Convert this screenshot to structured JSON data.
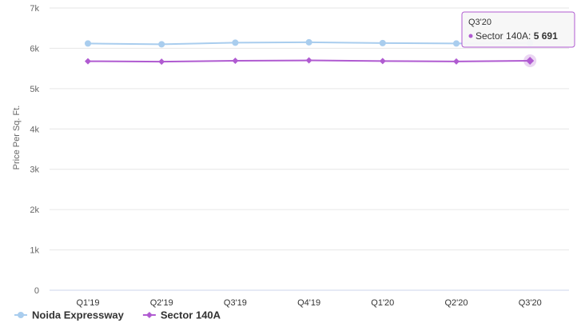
{
  "chart_data": {
    "type": "line",
    "categories": [
      "Q1'19",
      "Q2'19",
      "Q3'19",
      "Q4'19",
      "Q1'20",
      "Q2'20",
      "Q3'20"
    ],
    "ylabel": "Price Per Sq. Ft.",
    "ylim": [
      0,
      7000
    ],
    "yticks": [
      "0",
      "1k",
      "2k",
      "3k",
      "4k",
      "5k",
      "6k",
      "7k"
    ],
    "grid": true,
    "legend_position": "bottom-left",
    "series": [
      {
        "name": "Noida Expressway",
        "color": "#a9cdee",
        "marker": "circle",
        "values": [
          6120,
          6100,
          6140,
          6150,
          6130,
          6120,
          6130
        ]
      },
      {
        "name": "Sector 140A",
        "color": "#b05bd1",
        "marker": "diamond",
        "values": [
          5680,
          5670,
          5690,
          5700,
          5685,
          5675,
          5691
        ]
      }
    ],
    "tooltip": {
      "category": "Q3'20",
      "series": "Sector 140A",
      "label": "Sector 140A:",
      "value": "5 691"
    }
  }
}
